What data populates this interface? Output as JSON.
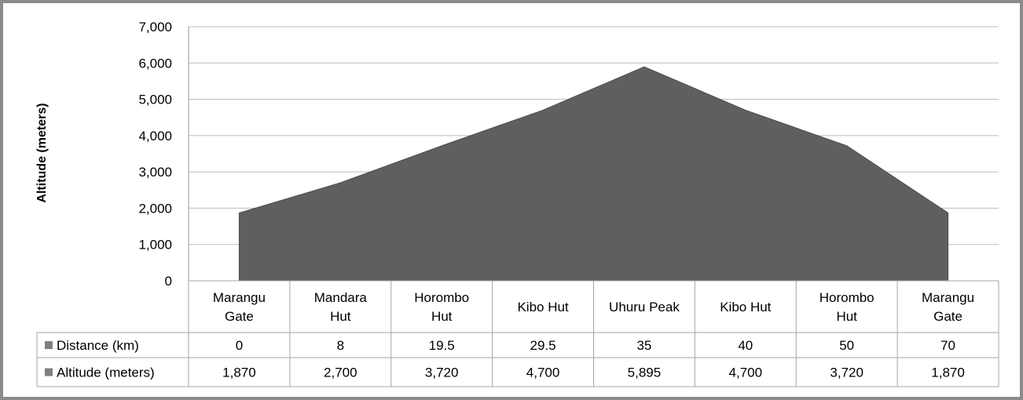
{
  "chart_data": {
    "type": "area",
    "title": "",
    "xlabel": "",
    "ylabel": "Altitude (meters)",
    "ylim": [
      0,
      7000
    ],
    "yticks": [
      "0",
      "1,000",
      "2,000",
      "3,000",
      "4,000",
      "5,000",
      "6,000",
      "7,000"
    ],
    "grid": true,
    "categories": [
      [
        "Marangu",
        "Gate"
      ],
      [
        "Mandara",
        "Hut"
      ],
      [
        "Horombo",
        "Hut"
      ],
      [
        "Kibo Hut"
      ],
      [
        "Uhuru Peak"
      ],
      [
        "Kibo Hut"
      ],
      [
        "Horombo",
        "Hut"
      ],
      [
        "Marangu",
        "Gate"
      ]
    ],
    "area_values": [
      1870,
      2700,
      3720,
      4700,
      5895,
      4700,
      3720,
      1870
    ],
    "area_color": "#5f5f5f",
    "table": [
      {
        "name": "Distance (km)",
        "color": "#7f7f7f",
        "values": [
          "0",
          "8",
          "19.5",
          "29.5",
          "35",
          "40",
          "50",
          "70"
        ]
      },
      {
        "name": "Altitude (meters)",
        "color": "#7f7f7f",
        "values": [
          "1,870",
          "2,700",
          "3,720",
          "4,700",
          "5,895",
          "4,700",
          "3,720",
          "1,870"
        ]
      }
    ]
  }
}
